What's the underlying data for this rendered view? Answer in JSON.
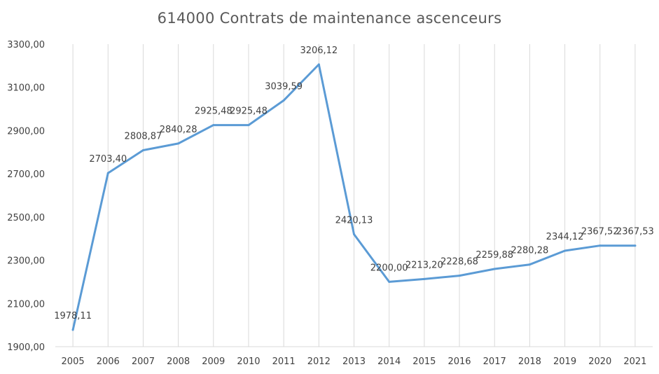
{
  "chart_data": {
    "type": "line",
    "title": "614000  Contrats de maintenance ascenceurs",
    "xlabel": "",
    "ylabel": "",
    "categories": [
      "2005",
      "2006",
      "2007",
      "2008",
      "2009",
      "2010",
      "2011",
      "2012",
      "2013",
      "2014",
      "2015",
      "2016",
      "2017",
      "2018",
      "2019",
      "2020",
      "2021"
    ],
    "series": [
      {
        "values": [
          1978.11,
          2703.4,
          2808.87,
          2840.28,
          2925.48,
          2925.48,
          3039.59,
          3206.12,
          2420.13,
          2200.0,
          2213.2,
          2228.68,
          2259.88,
          2280.28,
          2344.12,
          2367.52,
          2367.53
        ],
        "labels": [
          "1978,11",
          "2703,40",
          "2808,87",
          "2840,28",
          "2925,48",
          "2925,48",
          "3039,59",
          "3206,12",
          "2420,13",
          "2200,00",
          "2213,20",
          "2228,68",
          "2259,88",
          "2280,28",
          "2344,12",
          "2367,52",
          "2367,53"
        ],
        "color": "#5B9BD5"
      }
    ],
    "ylim": [
      1900,
      3300
    ],
    "yticks": [
      1900,
      2100,
      2300,
      2500,
      2700,
      2900,
      3100,
      3300
    ],
    "ytick_labels": [
      "1900,00",
      "2100,00",
      "2300,00",
      "2500,00",
      "2700,00",
      "2900,00",
      "3100,00",
      "3300,00"
    ],
    "grid": "vertical",
    "legend": "none",
    "gridline_color": "#d9d9d9",
    "text_color": "#404040"
  }
}
